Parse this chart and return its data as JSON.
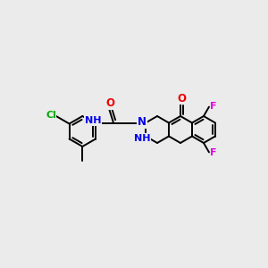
{
  "background_color": "#ebebeb",
  "atom_colors": {
    "C": "#000000",
    "N": "#0000ee",
    "O": "#ee0000",
    "F": "#dd00dd",
    "Cl": "#00aa00",
    "H": "#555555"
  },
  "bond_color": "#000000",
  "bond_lw": 1.4,
  "figsize": [
    3.0,
    3.0
  ],
  "dpi": 100
}
